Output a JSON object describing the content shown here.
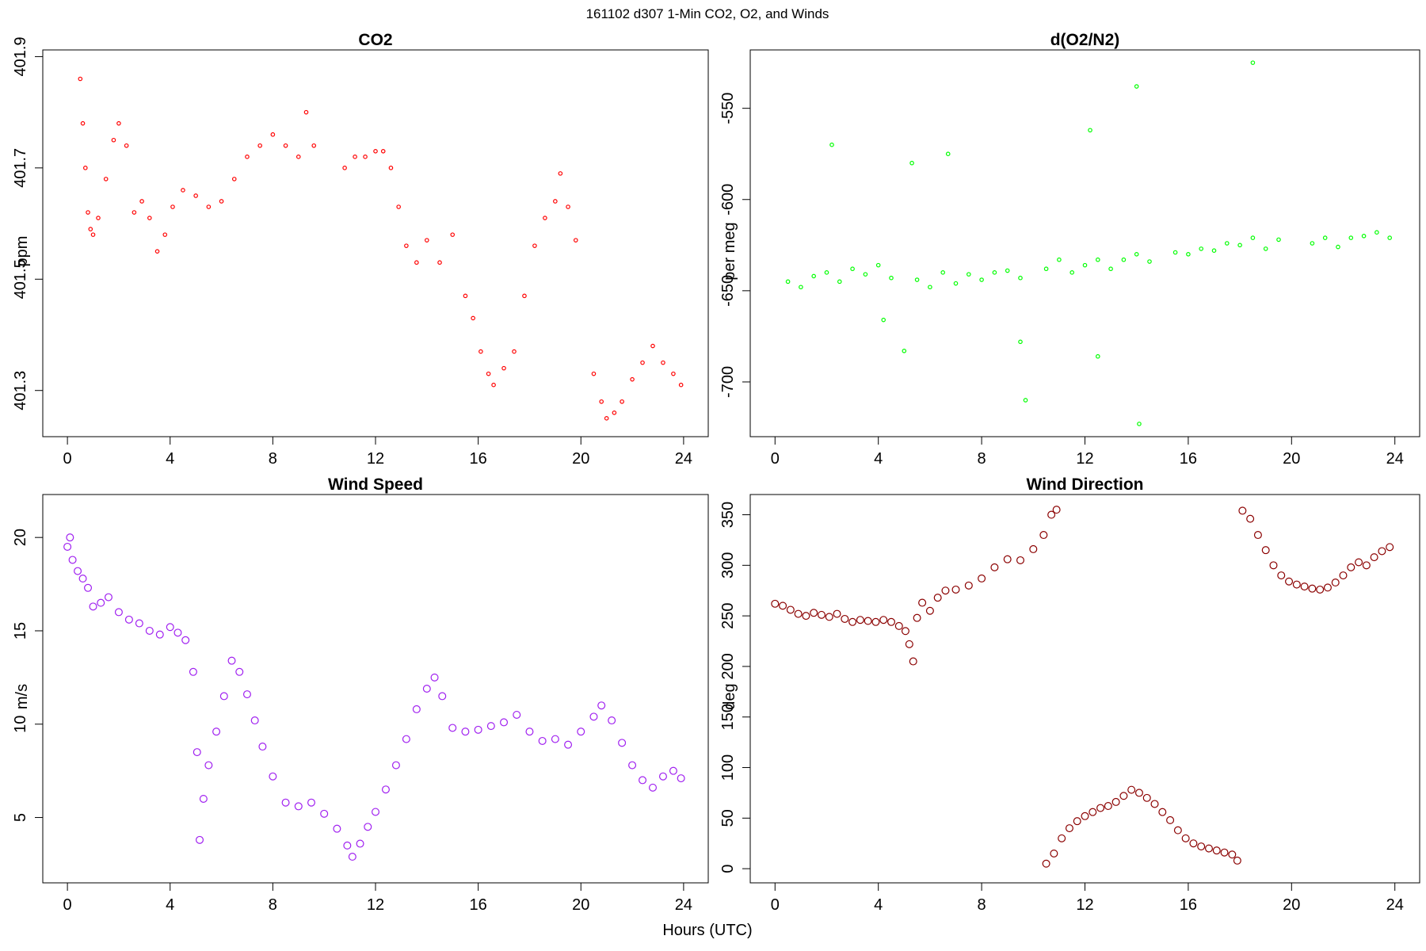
{
  "figure": {
    "title": "161102   d307   1-Min CO2, O2, and Winds",
    "xlabel": "Hours (UTC)"
  },
  "chart_data": [
    {
      "id": "co2",
      "type": "scatter",
      "title": "CO2",
      "ylabel": "ppm",
      "color": "#ff0000",
      "xlim": [
        -0.96,
        24.96
      ],
      "ylim": [
        401.217,
        401.912
      ],
      "xticks": [
        0,
        4,
        8,
        12,
        16,
        20,
        24
      ],
      "yticks": [
        401.3,
        401.5,
        401.7,
        401.9
      ],
      "ytick_labels": [
        "401.3",
        "401.5",
        "401.7",
        "401.9"
      ],
      "grid": false,
      "x": [
        0.5,
        0.6,
        0.7,
        0.8,
        0.9,
        1.0,
        1.2,
        1.5,
        1.8,
        2.0,
        2.3,
        2.6,
        2.9,
        3.2,
        3.5,
        3.8,
        4.1,
        4.5,
        5.0,
        5.5,
        6.0,
        6.5,
        7.0,
        7.5,
        8.0,
        8.5,
        9.0,
        9.3,
        9.6,
        10.8,
        11.2,
        11.6,
        12.0,
        12.3,
        12.6,
        12.9,
        13.2,
        13.6,
        14.0,
        14.5,
        15.0,
        15.5,
        15.8,
        16.1,
        16.4,
        16.6,
        17.0,
        17.4,
        17.8,
        18.2,
        18.6,
        19.0,
        19.2,
        19.5,
        19.8,
        20.5,
        20.8,
        21.0,
        21.3,
        21.6,
        22.0,
        22.4,
        22.8,
        23.2,
        23.6,
        23.9
      ],
      "y": [
        401.86,
        401.78,
        401.7,
        401.62,
        401.59,
        401.58,
        401.61,
        401.68,
        401.75,
        401.78,
        401.74,
        401.62,
        401.64,
        401.61,
        401.55,
        401.58,
        401.63,
        401.66,
        401.65,
        401.63,
        401.64,
        401.68,
        401.72,
        401.74,
        401.76,
        401.74,
        401.72,
        401.8,
        401.74,
        401.7,
        401.72,
        401.72,
        401.73,
        401.73,
        401.7,
        401.63,
        401.56,
        401.53,
        401.57,
        401.53,
        401.58,
        401.47,
        401.43,
        401.37,
        401.33,
        401.31,
        401.34,
        401.37,
        401.47,
        401.56,
        401.61,
        401.64,
        401.69,
        401.63,
        401.57,
        401.33,
        401.28,
        401.25,
        401.26,
        401.28,
        401.32,
        401.35,
        401.38,
        401.35,
        401.33,
        401.31
      ]
    },
    {
      "id": "o2",
      "type": "scatter",
      "title": "d(O2/N2)",
      "ylabel": "per meg",
      "color": "#00ff00",
      "xlim": [
        -0.96,
        24.96
      ],
      "ylim": [
        -730,
        -518
      ],
      "xticks": [
        0,
        4,
        8,
        12,
        16,
        20,
        24
      ],
      "yticks": [
        -700,
        -650,
        -600,
        -550
      ],
      "ytick_labels": [
        "-700",
        "-650",
        "-600",
        "-550"
      ],
      "grid": false,
      "x": [
        0.5,
        1.0,
        1.5,
        2.0,
        2.5,
        3.0,
        3.5,
        4.0,
        4.5,
        5.5,
        6.0,
        6.5,
        7.0,
        7.5,
        8.0,
        8.5,
        9.0,
        9.5,
        10.5,
        11.0,
        11.5,
        12.0,
        12.5,
        13.0,
        13.5,
        14.0,
        14.5,
        15.5,
        16.0,
        16.5,
        17.0,
        17.5,
        18.0,
        18.5,
        19.0,
        19.5,
        20.8,
        21.3,
        21.8,
        22.3,
        22.8,
        23.3,
        23.8,
        2.2,
        5.3,
        6.7,
        9.7,
        12.2,
        14.0,
        18.5,
        12.5,
        14.1,
        9.5,
        5.0,
        4.2
      ],
      "y": [
        -645,
        -648,
        -642,
        -640,
        -645,
        -638,
        -641,
        -636,
        -643,
        -644,
        -648,
        -640,
        -646,
        -641,
        -644,
        -640,
        -639,
        -643,
        -638,
        -633,
        -640,
        -636,
        -633,
        -638,
        -633,
        -630,
        -634,
        -629,
        -630,
        -627,
        -628,
        -624,
        -625,
        -621,
        -627,
        -622,
        -624,
        -621,
        -626,
        -621,
        -620,
        -618,
        -621,
        -570,
        -580,
        -575,
        -710,
        -562,
        -538,
        -525,
        -686,
        -723,
        -678,
        -683,
        -666
      ]
    },
    {
      "id": "wind-speed",
      "type": "scatter",
      "title": "Wind Speed",
      "ylabel": "m/s",
      "color": "#a020f0",
      "xlim": [
        -0.96,
        24.96
      ],
      "ylim": [
        1.5,
        22.3
      ],
      "xticks": [
        0,
        4,
        8,
        12,
        16,
        20,
        24
      ],
      "yticks": [
        5,
        10,
        15,
        20
      ],
      "ytick_labels": [
        "5",
        "10",
        "15",
        "20"
      ],
      "grid": false,
      "x": [
        0.0,
        0.1,
        0.2,
        0.4,
        0.6,
        0.8,
        1.0,
        1.3,
        1.6,
        2.0,
        2.4,
        2.8,
        3.2,
        3.6,
        4.0,
        4.3,
        4.6,
        4.9,
        5.05,
        5.15,
        5.3,
        5.5,
        5.8,
        6.1,
        6.4,
        6.7,
        7.0,
        7.3,
        7.6,
        8.0,
        8.5,
        9.0,
        9.5,
        10.0,
        10.5,
        10.9,
        11.1,
        11.4,
        11.7,
        12.0,
        12.4,
        12.8,
        13.2,
        13.6,
        14.0,
        14.3,
        14.6,
        15.0,
        15.5,
        16.0,
        16.5,
        17.0,
        17.5,
        18.0,
        18.5,
        19.0,
        19.5,
        20.0,
        20.5,
        20.8,
        21.2,
        21.6,
        22.0,
        22.4,
        22.8,
        23.2,
        23.6,
        23.9
      ],
      "y": [
        19.5,
        20.0,
        18.8,
        18.2,
        17.8,
        17.3,
        16.3,
        16.5,
        16.8,
        16.0,
        15.6,
        15.4,
        15.0,
        14.8,
        15.2,
        14.9,
        14.5,
        12.8,
        8.5,
        3.8,
        6.0,
        7.8,
        9.6,
        11.5,
        13.4,
        12.8,
        11.6,
        10.2,
        8.8,
        7.2,
        5.8,
        5.6,
        5.8,
        5.2,
        4.4,
        3.5,
        2.9,
        3.6,
        4.5,
        5.3,
        6.5,
        7.8,
        9.2,
        10.8,
        11.9,
        12.5,
        11.5,
        9.8,
        9.6,
        9.7,
        9.9,
        10.1,
        10.5,
        9.6,
        9.1,
        9.2,
        8.9,
        9.6,
        10.4,
        11.0,
        10.2,
        9.0,
        7.8,
        7.0,
        6.6,
        7.2,
        7.5,
        7.1
      ]
    },
    {
      "id": "wind-direction",
      "type": "scatter",
      "title": "Wind Direction",
      "ylabel": "deg",
      "color": "#8b0000",
      "xlim": [
        -0.96,
        24.96
      ],
      "ylim": [
        -14,
        370
      ],
      "xticks": [
        0,
        4,
        8,
        12,
        16,
        20,
        24
      ],
      "yticks": [
        0,
        50,
        100,
        150,
        200,
        250,
        300,
        350
      ],
      "ytick_labels": [
        "0",
        "50",
        "100",
        "150",
        "200",
        "250",
        "300",
        "350"
      ],
      "grid": false,
      "x": [
        0.0,
        0.3,
        0.6,
        0.9,
        1.2,
        1.5,
        1.8,
        2.1,
        2.4,
        2.7,
        3.0,
        3.3,
        3.6,
        3.9,
        4.2,
        4.5,
        4.8,
        5.05,
        5.2,
        5.35,
        5.5,
        5.7,
        6.0,
        6.3,
        6.6,
        7.0,
        7.5,
        8.0,
        8.5,
        9.0,
        9.5,
        10.0,
        10.4,
        10.7,
        10.9,
        10.5,
        10.8,
        11.1,
        11.4,
        11.7,
        12.0,
        12.3,
        12.6,
        12.9,
        13.2,
        13.5,
        13.8,
        14.1,
        14.4,
        14.7,
        15.0,
        15.3,
        15.6,
        15.9,
        16.2,
        16.5,
        16.8,
        17.1,
        17.4,
        17.7,
        17.9,
        18.1,
        18.4,
        18.7,
        19.0,
        19.3,
        19.6,
        19.9,
        20.2,
        20.5,
        20.8,
        21.1,
        21.4,
        21.7,
        22.0,
        22.3,
        22.6,
        22.9,
        23.2,
        23.5,
        23.8
      ],
      "y": [
        262,
        260,
        256,
        252,
        250,
        253,
        251,
        249,
        252,
        247,
        244,
        246,
        245,
        244,
        246,
        244,
        240,
        235,
        222,
        205,
        248,
        263,
        255,
        268,
        275,
        276,
        280,
        287,
        298,
        306,
        305,
        316,
        330,
        350,
        355,
        5,
        15,
        30,
        40,
        47,
        52,
        56,
        60,
        62,
        66,
        72,
        78,
        75,
        70,
        64,
        56,
        48,
        38,
        30,
        25,
        22,
        20,
        18,
        16,
        14,
        8,
        354,
        346,
        330,
        315,
        300,
        290,
        284,
        281,
        279,
        277,
        276,
        278,
        283,
        290,
        298,
        303,
        300,
        308,
        314,
        318
      ]
    }
  ]
}
